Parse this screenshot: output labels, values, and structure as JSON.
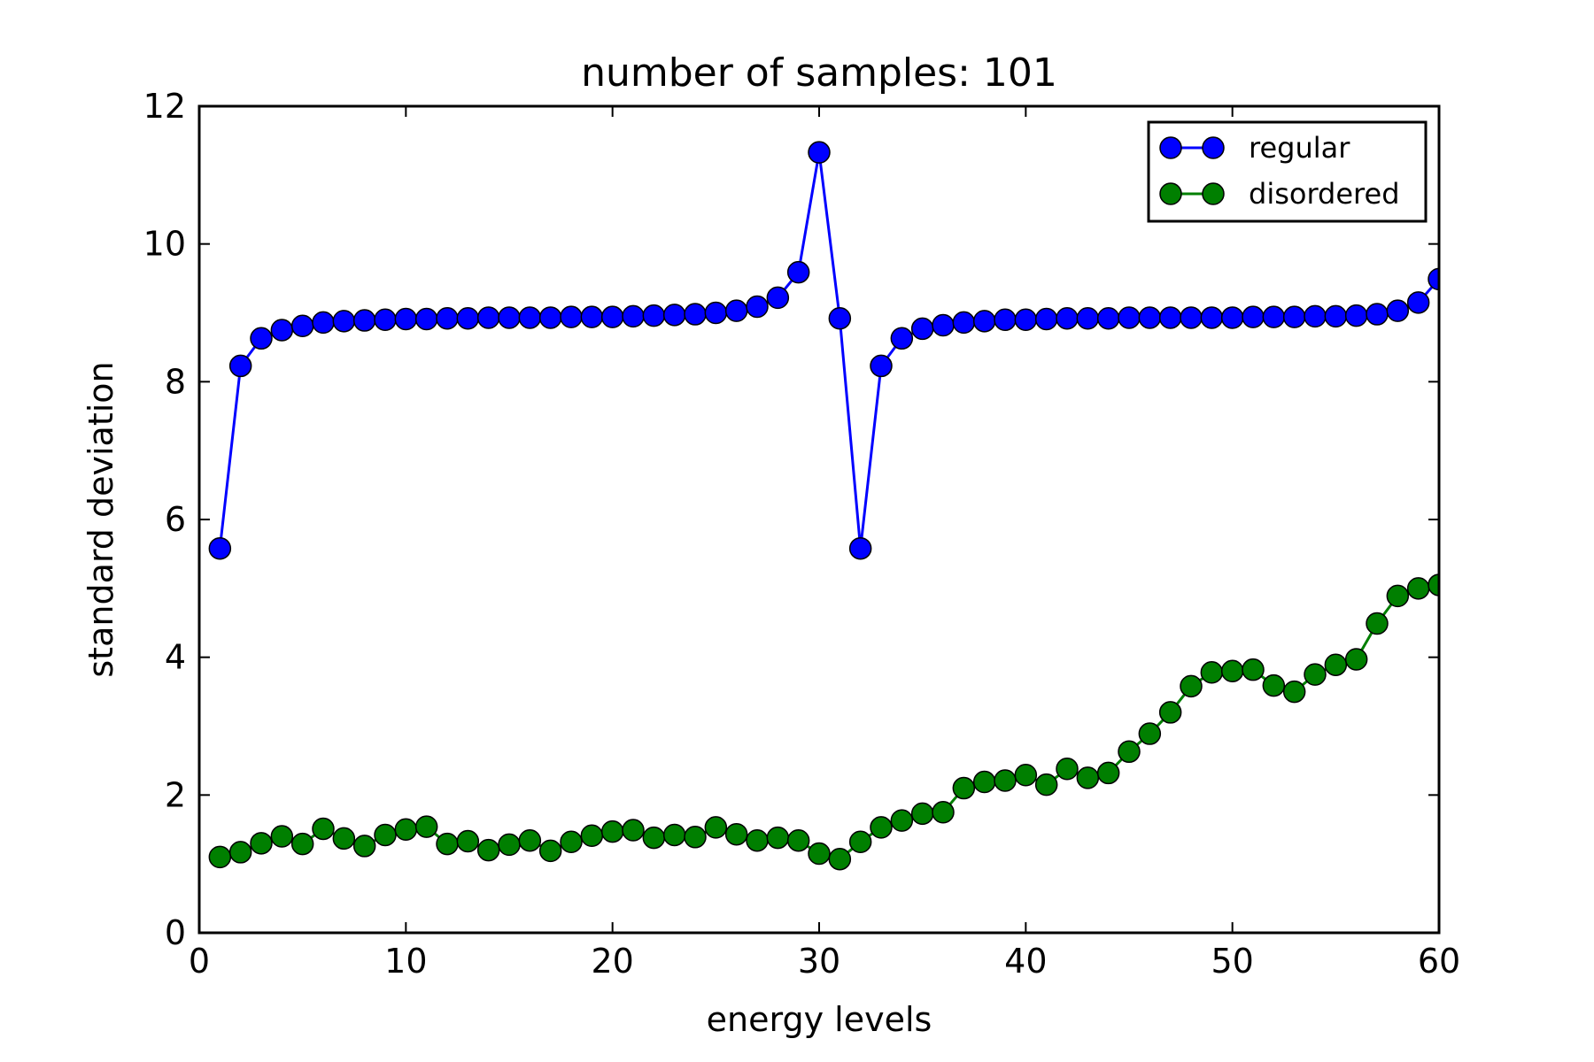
{
  "chart_data": {
    "type": "line",
    "title": "number of samples: 101",
    "xlabel": "energy levels",
    "ylabel": "standard deviation",
    "xlim": [
      0,
      60
    ],
    "ylim": [
      0,
      12
    ],
    "xticks": [
      0,
      10,
      20,
      30,
      40,
      50,
      60
    ],
    "yticks": [
      0,
      2,
      4,
      6,
      8,
      10,
      12
    ],
    "grid": false,
    "legend_position": "top-right",
    "x": [
      1,
      2,
      3,
      4,
      5,
      6,
      7,
      8,
      9,
      10,
      11,
      12,
      13,
      14,
      15,
      16,
      17,
      18,
      19,
      20,
      21,
      22,
      23,
      24,
      25,
      26,
      27,
      28,
      29,
      30,
      31,
      32,
      33,
      34,
      35,
      36,
      37,
      38,
      39,
      40,
      41,
      42,
      43,
      44,
      45,
      46,
      47,
      48,
      49,
      50,
      51,
      52,
      53,
      54,
      55,
      56,
      57,
      58,
      59,
      60
    ],
    "series": [
      {
        "name": "regular",
        "color": "#0000ff",
        "values": [
          5.58,
          8.23,
          8.63,
          8.75,
          8.81,
          8.86,
          8.88,
          8.89,
          8.9,
          8.91,
          8.91,
          8.92,
          8.92,
          8.93,
          8.93,
          8.93,
          8.93,
          8.94,
          8.94,
          8.94,
          8.95,
          8.96,
          8.97,
          8.98,
          9.0,
          9.03,
          9.09,
          9.22,
          9.59,
          11.33,
          8.92,
          5.58,
          8.23,
          8.63,
          8.77,
          8.82,
          8.86,
          8.88,
          8.9,
          8.9,
          8.91,
          8.92,
          8.92,
          8.92,
          8.93,
          8.93,
          8.93,
          8.93,
          8.93,
          8.93,
          8.94,
          8.94,
          8.94,
          8.95,
          8.95,
          8.96,
          8.98,
          9.03,
          9.15,
          9.49
        ]
      },
      {
        "name": "disordered",
        "color": "#007f00",
        "values": [
          1.1,
          1.17,
          1.3,
          1.4,
          1.29,
          1.51,
          1.37,
          1.26,
          1.42,
          1.5,
          1.54,
          1.29,
          1.33,
          1.2,
          1.28,
          1.34,
          1.19,
          1.32,
          1.41,
          1.47,
          1.49,
          1.38,
          1.42,
          1.39,
          1.53,
          1.43,
          1.34,
          1.38,
          1.34,
          1.15,
          1.07,
          1.32,
          1.53,
          1.63,
          1.73,
          1.75,
          2.1,
          2.19,
          2.21,
          2.29,
          2.15,
          2.38,
          2.25,
          2.32,
          2.63,
          2.89,
          3.2,
          3.58,
          3.78,
          3.8,
          3.82,
          3.59,
          3.5,
          3.75,
          3.89,
          3.97,
          4.49,
          4.89,
          5.0,
          5.05
        ]
      }
    ]
  }
}
